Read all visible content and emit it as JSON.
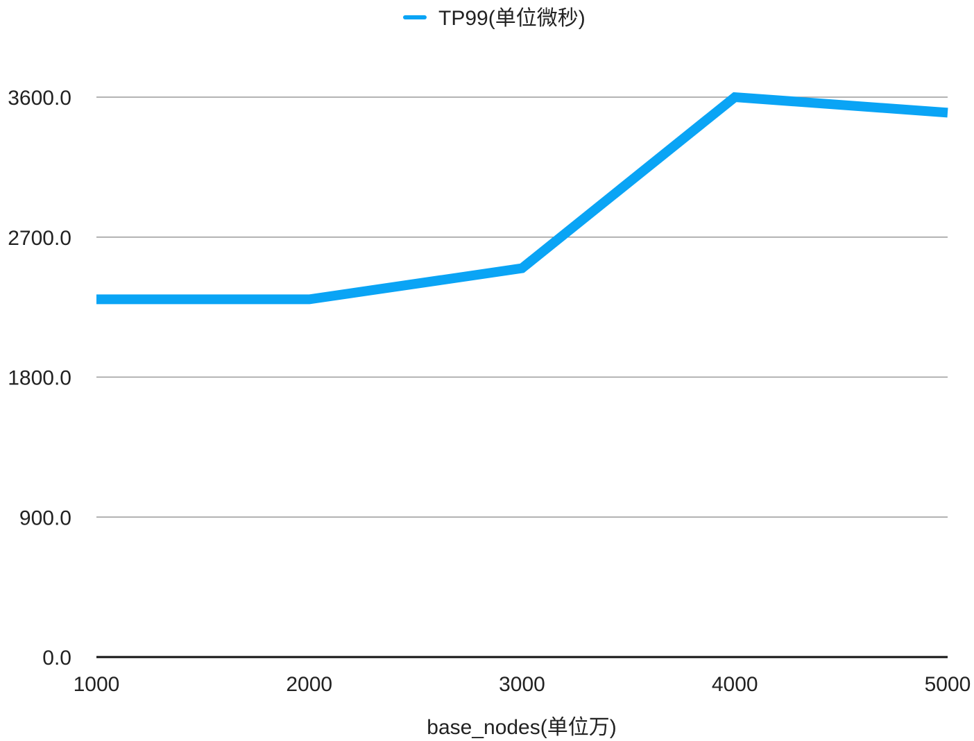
{
  "chart_data": {
    "type": "line",
    "x": [
      1000,
      2000,
      3000,
      4000,
      5000
    ],
    "x_ticks": [
      "1000",
      "2000",
      "3000",
      "4000",
      "5000"
    ],
    "y_ticks": [
      "0.0",
      "900.0",
      "1800.0",
      "2700.0",
      "3600.0"
    ],
    "ylim": [
      0,
      3600
    ],
    "xlabel": "base_nodes(单位万)",
    "ylabel": "",
    "title": "",
    "grid": true,
    "legend_position": "top-center",
    "series": [
      {
        "name": "TP99(单位微秒)",
        "color": "#0aa4f5",
        "values": [
          2300,
          2300,
          2500,
          3600,
          3500
        ]
      }
    ]
  }
}
